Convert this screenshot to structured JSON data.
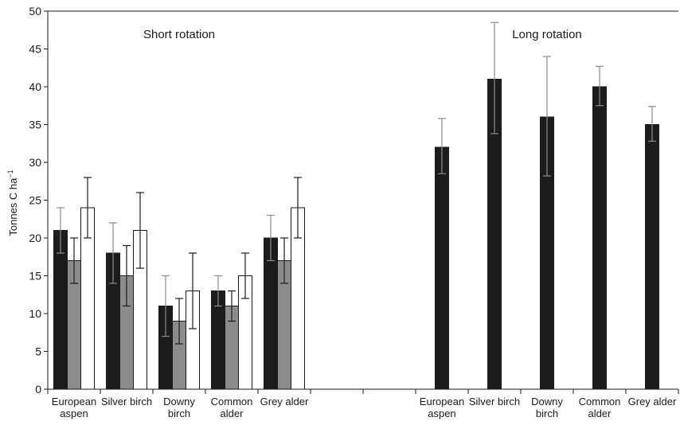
{
  "chart_data": {
    "type": "bar",
    "ylabel": "Tonnes C ha",
    "ylabel_sup": "−1",
    "ylim": [
      0,
      50
    ],
    "yticks": [
      0,
      5,
      10,
      15,
      20,
      25,
      30,
      35,
      40,
      45,
      50
    ],
    "grid": false,
    "legend": "none",
    "colors": {
      "dark": "#1c1c1c",
      "grey": "#8c8c8c",
      "white": "#ffffff",
      "err_light": "#8c8c8c",
      "err_dark": "#1c1c1c"
    },
    "groups": [
      {
        "label": "Short rotation",
        "categories": [
          {
            "label": [
              "European",
              "aspen"
            ],
            "bars": [
              {
                "value": 21,
                "err": [
                  18,
                  24
                ]
              },
              {
                "value": 17,
                "err": [
                  14,
                  20
                ]
              },
              {
                "value": 24,
                "err": [
                  20,
                  28
                ]
              }
            ]
          },
          {
            "label": [
              "Silver birch"
            ],
            "bars": [
              {
                "value": 18,
                "err": [
                  14,
                  22
                ]
              },
              {
                "value": 15,
                "err": [
                  11,
                  19
                ]
              },
              {
                "value": 21,
                "err": [
                  16,
                  26
                ]
              }
            ]
          },
          {
            "label": [
              "Downy",
              "birch"
            ],
            "bars": [
              {
                "value": 11,
                "err": [
                  7,
                  15
                ]
              },
              {
                "value": 9,
                "err": [
                  6,
                  12
                ]
              },
              {
                "value": 13,
                "err": [
                  8,
                  18
                ]
              }
            ]
          },
          {
            "label": [
              "Common",
              "alder"
            ],
            "bars": [
              {
                "value": 13,
                "err": [
                  11,
                  15
                ]
              },
              {
                "value": 11,
                "err": [
                  9,
                  13
                ]
              },
              {
                "value": 15,
                "err": [
                  12,
                  18
                ]
              }
            ]
          },
          {
            "label": [
              "Grey alder"
            ],
            "bars": [
              {
                "value": 20,
                "err": [
                  17,
                  23
                ]
              },
              {
                "value": 17,
                "err": [
                  14,
                  20
                ]
              },
              {
                "value": 24,
                "err": [
                  20,
                  28
                ]
              }
            ]
          }
        ]
      },
      {
        "label": "Long rotation",
        "categories": [
          {
            "label": [
              "European",
              "aspen"
            ],
            "bars": [
              {
                "value": 32,
                "err": [
                  28.5,
                  35.8
                ]
              }
            ]
          },
          {
            "label": [
              "Silver birch"
            ],
            "bars": [
              {
                "value": 41,
                "err": [
                  33.8,
                  48.5
                ]
              }
            ]
          },
          {
            "label": [
              "Downy",
              "birch"
            ],
            "bars": [
              {
                "value": 36,
                "err": [
                  28.2,
                  44
                ]
              }
            ]
          },
          {
            "label": [
              "Common",
              "alder"
            ],
            "bars": [
              {
                "value": 40,
                "err": [
                  37.5,
                  42.7
                ]
              }
            ]
          },
          {
            "label": [
              "Grey alder"
            ],
            "bars": [
              {
                "value": 35,
                "err": [
                  32.8,
                  37.4
                ]
              }
            ]
          }
        ]
      }
    ]
  }
}
